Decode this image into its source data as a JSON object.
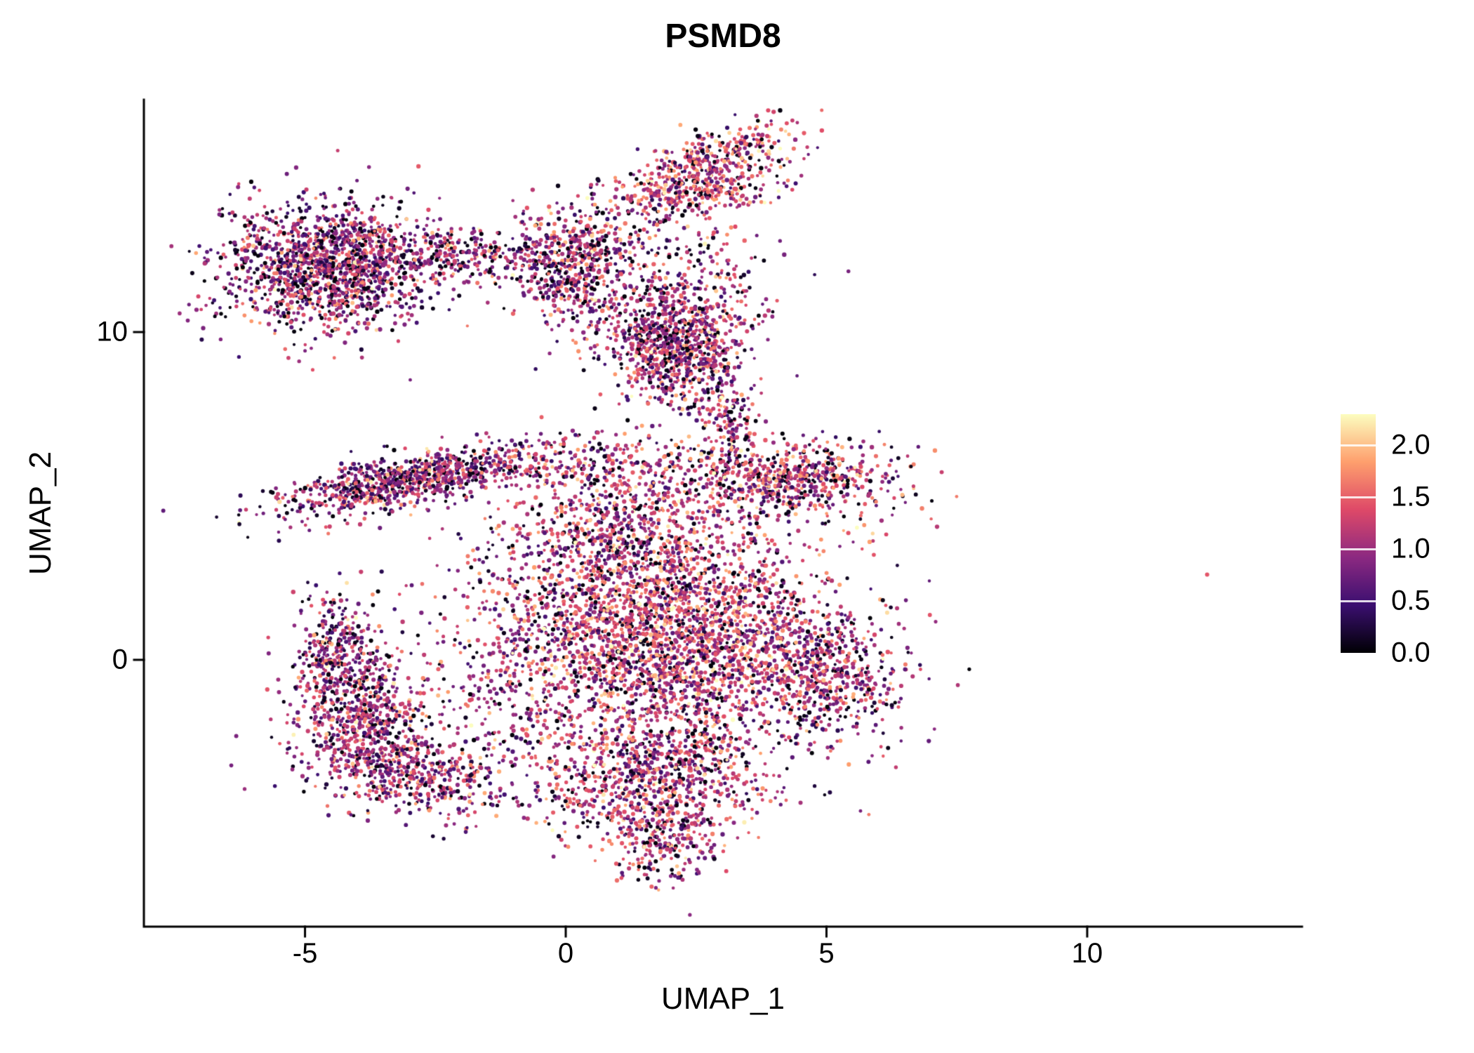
{
  "chart_data": {
    "type": "scatter",
    "title": "PSMD8",
    "xlabel": "UMAP_1",
    "ylabel": "UMAP_2",
    "xlim": [
      -8.09,
      14.12
    ],
    "ylim": [
      -8.14,
      17.09
    ],
    "x_ticks": [
      -5,
      0,
      5,
      10
    ],
    "x_tick_labels": [
      "-5",
      "0",
      "5",
      "10"
    ],
    "y_ticks": [
      10,
      0
    ],
    "y_tick_labels": [
      "10",
      "0"
    ],
    "grid": false,
    "legend_position": "right",
    "seed": 20240817,
    "point_radius": 2.6,
    "colorbar": {
      "name": "magma",
      "vmin": 0.0,
      "vmax": 2.3,
      "ticks": [
        2.0,
        1.5,
        1.0,
        0.5,
        0.0
      ],
      "tick_labels": [
        "2.0",
        "1.5",
        "1.0",
        "0.5",
        "0.0"
      ],
      "colors": [
        "#000004",
        "#3b0f70",
        "#8c2981",
        "#de4968",
        "#fe9f6d",
        "#fcfdbf"
      ]
    },
    "clusters": [
      {
        "name": "top-left-blob",
        "n": 1500,
        "cx": -4.55,
        "cy": 11.95,
        "sx": 1.0,
        "sy": 0.95,
        "rot": 0,
        "vmean": 0.95
      },
      {
        "name": "top-left-bridge",
        "n": 260,
        "cx": -2.0,
        "cy": 12.35,
        "sx": 0.8,
        "sy": 0.4,
        "rot": -6,
        "vmean": 1.0
      },
      {
        "name": "mid-top-cluster",
        "n": 480,
        "cx": 0.05,
        "cy": 12.2,
        "sx": 0.55,
        "sy": 0.8,
        "rot": 0,
        "vmean": 1.0
      },
      {
        "name": "mid-top-scatter",
        "n": 140,
        "cx": 0.9,
        "cy": 11.2,
        "sx": 0.8,
        "sy": 0.9,
        "rot": 0,
        "vmean": 1.0
      },
      {
        "name": "top-wedge-upper",
        "n": 420,
        "cx": 2.65,
        "cy": 15.1,
        "sx": 1.0,
        "sy": 0.4,
        "rot": 33,
        "vmean": 1.3
      },
      {
        "name": "top-wedge-lower",
        "n": 200,
        "cx": 2.6,
        "cy": 14.2,
        "sx": 0.8,
        "sy": 0.28,
        "rot": 8,
        "vmean": 1.25
      },
      {
        "name": "wedge-connector",
        "n": 90,
        "cx": 1.35,
        "cy": 13.1,
        "sx": 0.45,
        "sy": 0.7,
        "rot": -25,
        "vmean": 1.0
      },
      {
        "name": "wedge-right-trail",
        "n": 70,
        "cx": 3.0,
        "cy": 12.3,
        "sx": 0.35,
        "sy": 0.9,
        "rot": 10,
        "vmean": 1.1
      },
      {
        "name": "upper-center-blob",
        "n": 780,
        "cx": 2.1,
        "cy": 9.6,
        "sx": 0.62,
        "sy": 0.85,
        "rot": 0,
        "vmean": 1.05
      },
      {
        "name": "upper-center-halo",
        "n": 210,
        "cx": 2.2,
        "cy": 10.6,
        "sx": 0.95,
        "sy": 1.2,
        "rot": 0,
        "vmean": 1.0
      },
      {
        "name": "upper-center-tail",
        "n": 150,
        "cx": 3.05,
        "cy": 7.6,
        "sx": 0.3,
        "sy": 0.8,
        "rot": 12,
        "vmean": 1.1
      },
      {
        "name": "left-band",
        "n": 950,
        "cx": -2.9,
        "cy": 5.5,
        "sx": 1.35,
        "sy": 0.38,
        "rot": 18,
        "vmean": 1.0
      },
      {
        "name": "center-band-sparse",
        "n": 260,
        "cx": 0.9,
        "cy": 5.9,
        "sx": 1.1,
        "sy": 0.5,
        "rot": 5,
        "vmean": 1.1
      },
      {
        "name": "right-upper-lobe",
        "n": 650,
        "cx": 4.25,
        "cy": 5.6,
        "sx": 1.05,
        "sy": 0.55,
        "rot": -5,
        "vmean": 1.2
      },
      {
        "name": "central-mass",
        "n": 3300,
        "cx": 1.8,
        "cy": 0.7,
        "sx": 1.75,
        "sy": 2.0,
        "rot": 0,
        "vmean": 1.2
      },
      {
        "name": "central-upper",
        "n": 520,
        "cx": 1.3,
        "cy": 3.8,
        "sx": 1.2,
        "sy": 0.9,
        "rot": 0,
        "vmean": 1.15
      },
      {
        "name": "central-lower",
        "n": 700,
        "cx": 1.6,
        "cy": -3.6,
        "sx": 1.2,
        "sy": 0.9,
        "rot": 0,
        "vmean": 1.15
      },
      {
        "name": "bottom-tail",
        "n": 280,
        "cx": 1.9,
        "cy": -5.3,
        "sx": 0.55,
        "sy": 0.85,
        "rot": 8,
        "vmean": 1.2
      },
      {
        "name": "left-crescent-top",
        "n": 430,
        "cx": -4.35,
        "cy": -0.1,
        "sx": 0.45,
        "sy": 1.0,
        "rot": 0,
        "vmean": 1.0
      },
      {
        "name": "left-crescent-mid",
        "n": 380,
        "cx": -3.85,
        "cy": -2.2,
        "sx": 0.5,
        "sy": 0.85,
        "rot": -20,
        "vmean": 1.0
      },
      {
        "name": "left-crescent-bot",
        "n": 430,
        "cx": -2.8,
        "cy": -3.6,
        "sx": 0.8,
        "sy": 0.6,
        "rot": -30,
        "vmean": 1.05
      },
      {
        "name": "crescent-halo",
        "n": 150,
        "cx": -3.9,
        "cy": -1.4,
        "sx": 0.85,
        "sy": 1.6,
        "rot": -10,
        "vmean": 0.95
      },
      {
        "name": "right-lobe",
        "n": 520,
        "cx": 5.0,
        "cy": -0.5,
        "sx": 0.7,
        "sy": 0.95,
        "rot": 8,
        "vmean": 1.1
      },
      {
        "name": "gap-scatter",
        "n": 80,
        "cx": -1.5,
        "cy": -1.3,
        "sx": 0.55,
        "sy": 1.2,
        "rot": 0,
        "vmean": 1.0
      }
    ],
    "outliers": [
      [
        12.3,
        2.6,
        1.45
      ]
    ],
    "value_noise_sd": 0.48,
    "zero_fraction": 0.13
  }
}
